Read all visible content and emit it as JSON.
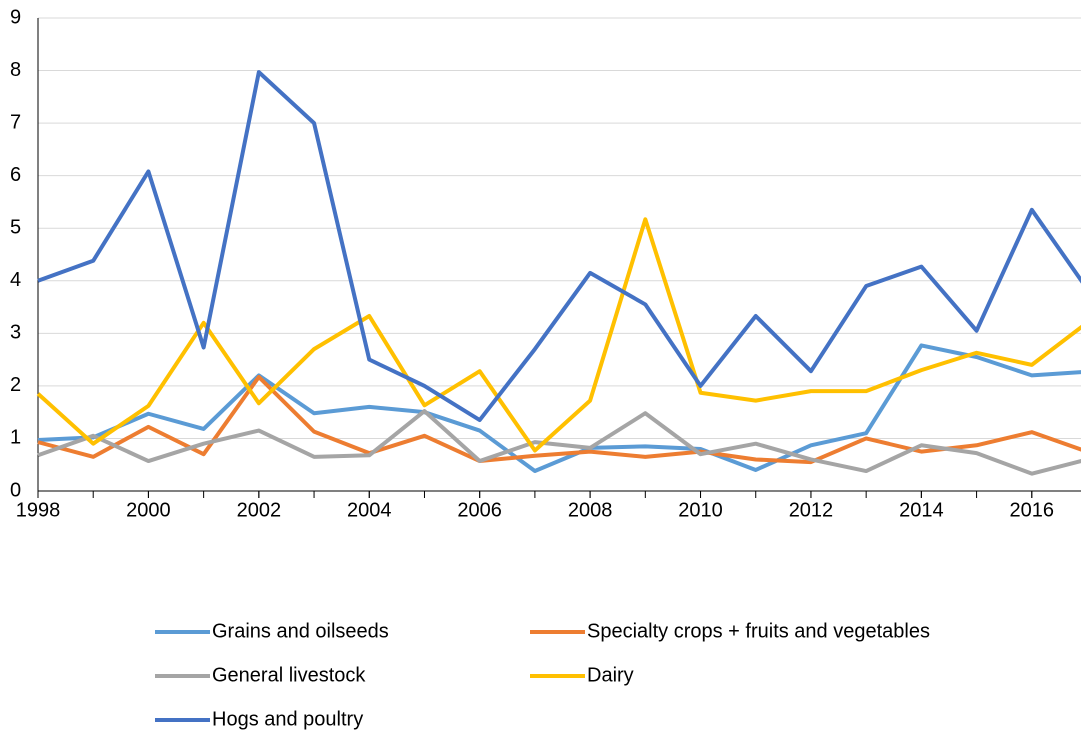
{
  "chart_data": {
    "type": "line",
    "x": [
      1998,
      1999,
      2000,
      2001,
      2002,
      2003,
      2004,
      2005,
      2006,
      2007,
      2008,
      2009,
      2010,
      2011,
      2012,
      2013,
      2014,
      2015,
      2016,
      2017
    ],
    "series": [
      {
        "name": "Grains and oilseeds",
        "color": "#5b9bd5",
        "values": [
          0.97,
          1.02,
          1.47,
          1.18,
          2.2,
          1.48,
          1.6,
          1.5,
          1.15,
          0.38,
          0.82,
          0.85,
          0.8,
          0.4,
          0.87,
          1.1,
          2.77,
          2.55,
          2.2,
          2.27
        ]
      },
      {
        "name": "Specialty crops + fruits and vegetables",
        "color": "#ed7d31",
        "values": [
          0.93,
          0.65,
          1.22,
          0.7,
          2.17,
          1.13,
          0.72,
          1.05,
          0.57,
          0.67,
          0.75,
          0.65,
          0.75,
          0.6,
          0.55,
          1.0,
          0.75,
          0.87,
          1.12,
          0.75
        ]
      },
      {
        "name": "General livestock",
        "color": "#a5a5a5",
        "values": [
          0.68,
          1.05,
          0.57,
          0.9,
          1.15,
          0.65,
          0.68,
          1.52,
          0.57,
          0.93,
          0.82,
          1.48,
          0.7,
          0.9,
          0.6,
          0.38,
          0.87,
          0.72,
          0.33,
          0.6
        ]
      },
      {
        "name": "Dairy",
        "color": "#ffc000",
        "values": [
          1.85,
          0.9,
          1.62,
          3.2,
          1.67,
          2.7,
          3.33,
          1.63,
          2.28,
          0.77,
          1.72,
          5.17,
          1.87,
          1.72,
          1.9,
          1.9,
          2.3,
          2.63,
          2.4,
          3.2
        ]
      },
      {
        "name": "Hogs and poultry",
        "color": "#4472c4",
        "values": [
          4.0,
          4.38,
          6.08,
          2.73,
          7.97,
          7.0,
          2.5,
          2.0,
          1.35,
          2.7,
          4.15,
          3.55,
          2.0,
          3.33,
          2.28,
          3.9,
          4.27,
          3.05,
          5.35,
          3.85
        ]
      }
    ],
    "xlim": [
      1998,
      2017
    ],
    "xticks": [
      1998,
      2000,
      2002,
      2004,
      2006,
      2008,
      2010,
      2012,
      2014,
      2016
    ],
    "ylim": [
      0,
      9
    ],
    "yticks": [
      0,
      1,
      2,
      3,
      4,
      5,
      6,
      7,
      8,
      9
    ],
    "grid": true
  }
}
